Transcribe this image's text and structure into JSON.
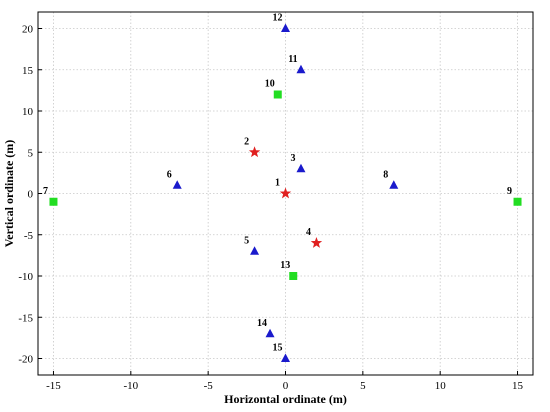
{
  "chart_data": {
    "type": "scatter",
    "title": "",
    "xlabel": "Horizontal  ordinate (m)",
    "ylabel": "Vertical  ordinate (m)",
    "xlim": [
      -16,
      16
    ],
    "ylim": [
      -22,
      22
    ],
    "xticks": [
      -15,
      -10,
      -5,
      0,
      5,
      10,
      15
    ],
    "yticks": [
      -20,
      -15,
      -10,
      -5,
      0,
      5,
      10,
      15,
      20
    ],
    "grid": true,
    "legend": "none",
    "marker_colors": {
      "star": "#e02020",
      "triangle": "#1a1acc",
      "square": "#22dd22"
    },
    "points": [
      {
        "label": "1",
        "x": 0,
        "y": 0,
        "marker": "star"
      },
      {
        "label": "2",
        "x": -2,
        "y": 5,
        "marker": "star"
      },
      {
        "label": "3",
        "x": 1,
        "y": 3,
        "marker": "triangle"
      },
      {
        "label": "4",
        "x": 2,
        "y": -6,
        "marker": "star"
      },
      {
        "label": "5",
        "x": -2,
        "y": -7,
        "marker": "triangle"
      },
      {
        "label": "6",
        "x": -7,
        "y": 1,
        "marker": "triangle"
      },
      {
        "label": "7",
        "x": -15,
        "y": -1,
        "marker": "square"
      },
      {
        "label": "8",
        "x": 7,
        "y": 1,
        "marker": "triangle"
      },
      {
        "label": "9",
        "x": 15,
        "y": -1,
        "marker": "square"
      },
      {
        "label": "10",
        "x": -0.5,
        "y": 12,
        "marker": "square"
      },
      {
        "label": "11",
        "x": 1,
        "y": 15,
        "marker": "triangle"
      },
      {
        "label": "12",
        "x": 0,
        "y": 20,
        "marker": "triangle"
      },
      {
        "label": "13",
        "x": 0.5,
        "y": -10,
        "marker": "square"
      },
      {
        "label": "14",
        "x": -1,
        "y": -17,
        "marker": "triangle"
      },
      {
        "label": "15",
        "x": 0,
        "y": -20,
        "marker": "triangle"
      }
    ]
  }
}
